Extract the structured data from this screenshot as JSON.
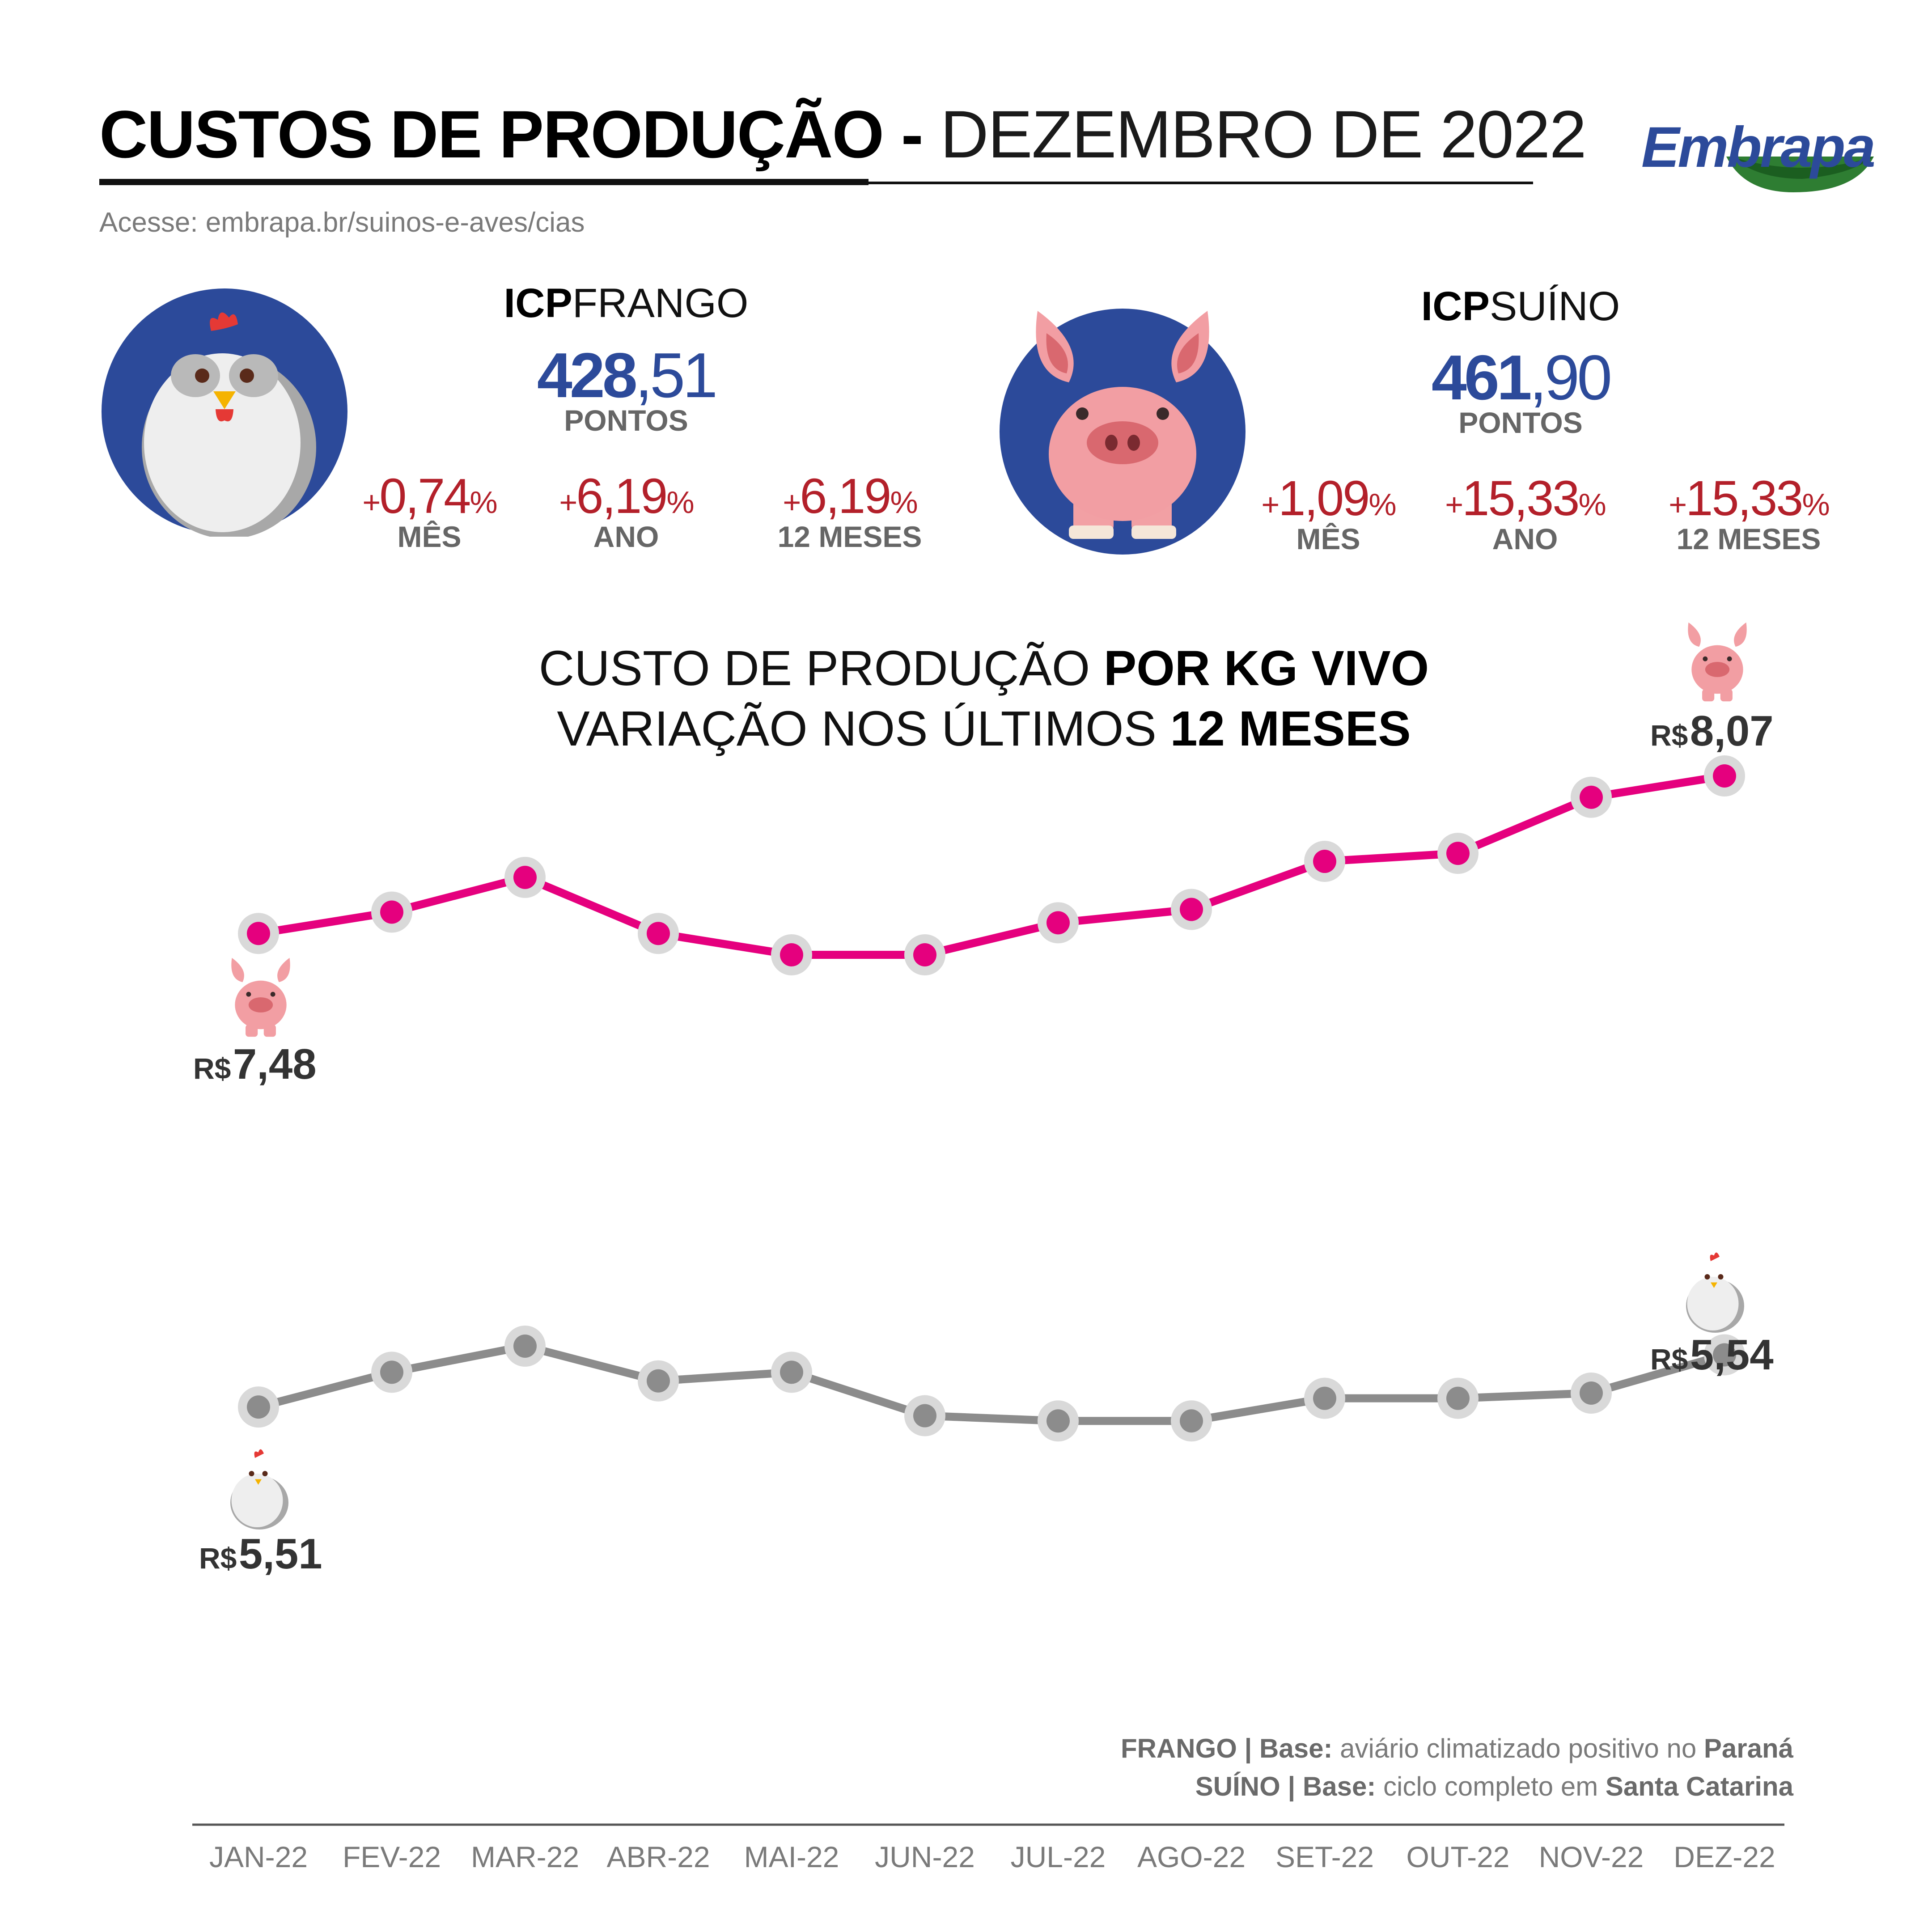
{
  "header": {
    "title_bold": "CUSTOS DE PRODUÇÃO -",
    "title_light": "DEZEMBRO DE 2022",
    "access": "Acesse: embrapa.br/suinos-e-aves/cias",
    "logo": "Embrapa"
  },
  "icp_frango": {
    "label_bold": "ICP",
    "label_light": "FRANGO",
    "value_int": "428",
    "value_dec": ",51",
    "units": "PONTOS",
    "changes": [
      {
        "sign": "+",
        "value": "0,74",
        "unit": "%",
        "label": "MÊS"
      },
      {
        "sign": "+",
        "value": "6,19",
        "unit": "%",
        "label": "ANO"
      },
      {
        "sign": "+",
        "value": "6,19",
        "unit": "%",
        "label": "12 MESES"
      }
    ]
  },
  "icp_suino": {
    "label_bold": "ICP",
    "label_light": "SUÍNO",
    "value_int": "461",
    "value_dec": ",90",
    "units": "PONTOS",
    "changes": [
      {
        "sign": "+",
        "value": "1,09",
        "unit": "%",
        "label": "MÊS"
      },
      {
        "sign": "+",
        "value": "15,33",
        "unit": "%",
        "label": "ANO"
      },
      {
        "sign": "+",
        "value": "15,33",
        "unit": "%",
        "label": "12 MESES"
      }
    ]
  },
  "chart_heading": {
    "line1_light": "CUSTO DE PRODUÇÃO ",
    "line1_bold": "POR KG VIVO",
    "line2_light": "VARIAÇÃO NOS ÚLTIMOS ",
    "line2_bold": "12 MESES"
  },
  "notes": {
    "frango_bold": "FRANGO | Base:",
    "frango_light": " aviário climatizado positivo no ",
    "frango_place": "Paraná",
    "suino_bold": "SUÍNO | Base:",
    "suino_light": " ciclo completo em ",
    "suino_place": "Santa Catarina"
  },
  "chart_data": {
    "type": "line",
    "x": [
      "JAN-22",
      "FEV-22",
      "MAR-22",
      "ABR-22",
      "MAI-22",
      "JUN-22",
      "JUL-22",
      "AGO-22",
      "SET-22",
      "OUT-22",
      "NOV-22",
      "DEZ-22"
    ],
    "series": [
      {
        "key": "suino",
        "color": "#e5007e",
        "values": [
          7.48,
          7.56,
          7.69,
          7.48,
          7.4,
          7.4,
          7.52,
          7.57,
          7.75,
          7.78,
          7.99,
          8.07
        ],
        "start_currency": "R$",
        "start_value": "7,48",
        "end_currency": "R$",
        "end_value": "8,07"
      },
      {
        "key": "frango",
        "color": "#8c8c8c",
        "values": [
          5.51,
          5.53,
          5.545,
          5.525,
          5.53,
          5.505,
          5.502,
          5.502,
          5.515,
          5.515,
          5.518,
          5.54
        ],
        "start_currency": "R$",
        "start_value": "5,51",
        "end_currency": "R$",
        "end_value": "5,54"
      }
    ],
    "colors": {
      "suino": "#e5007e",
      "frango": "#8c8c8c",
      "halo": "#d9d9d9",
      "accent_blue": "#2c4a9a",
      "red": "#b3202a"
    },
    "grid": false,
    "legend": "none (icons at line ends)"
  }
}
